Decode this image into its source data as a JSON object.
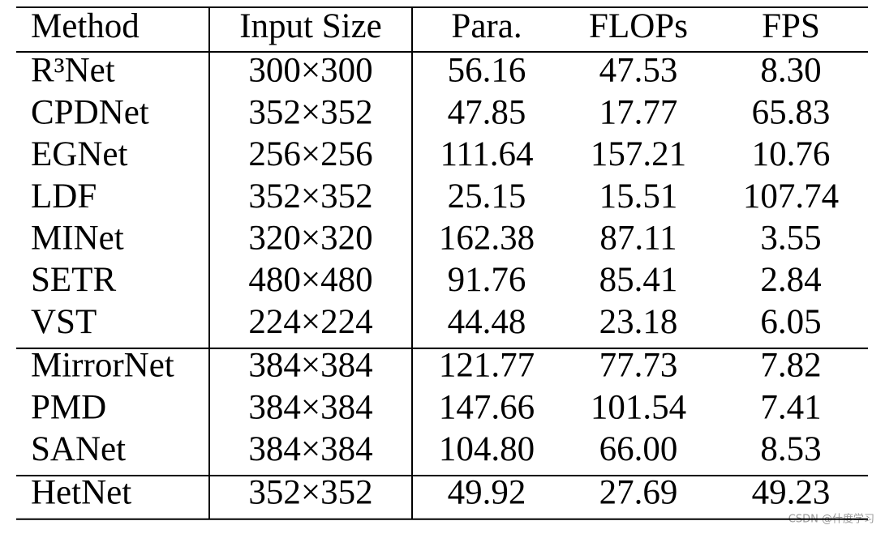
{
  "table": {
    "header": [
      "Method",
      "Input Size",
      "Para.",
      "FLOPs",
      "FPS"
    ],
    "groups": [
      [
        [
          "R³Net",
          "300×300",
          "56.16",
          "47.53",
          "8.30"
        ],
        [
          "CPDNet",
          "352×352",
          "47.85",
          "17.77",
          "65.83"
        ],
        [
          "EGNet",
          "256×256",
          "111.64",
          "157.21",
          "10.76"
        ],
        [
          "LDF",
          "352×352",
          "25.15",
          "15.51",
          "107.74"
        ],
        [
          "MINet",
          "320×320",
          "162.38",
          "87.11",
          "3.55"
        ],
        [
          "SETR",
          "480×480",
          "91.76",
          "85.41",
          "2.84"
        ],
        [
          "VST",
          "224×224",
          "44.48",
          "23.18",
          "6.05"
        ]
      ],
      [
        [
          "MirrorNet",
          "384×384",
          "121.77",
          "77.73",
          "7.82"
        ],
        [
          "PMD",
          "384×384",
          "147.66",
          "101.54",
          "7.41"
        ],
        [
          "SANet",
          "384×384",
          "104.80",
          "66.00",
          "8.53"
        ]
      ],
      [
        [
          "HetNet",
          "352×352",
          "49.92",
          "27.69",
          "49.23"
        ]
      ]
    ]
  },
  "watermark": "CSDN @什度学习"
}
